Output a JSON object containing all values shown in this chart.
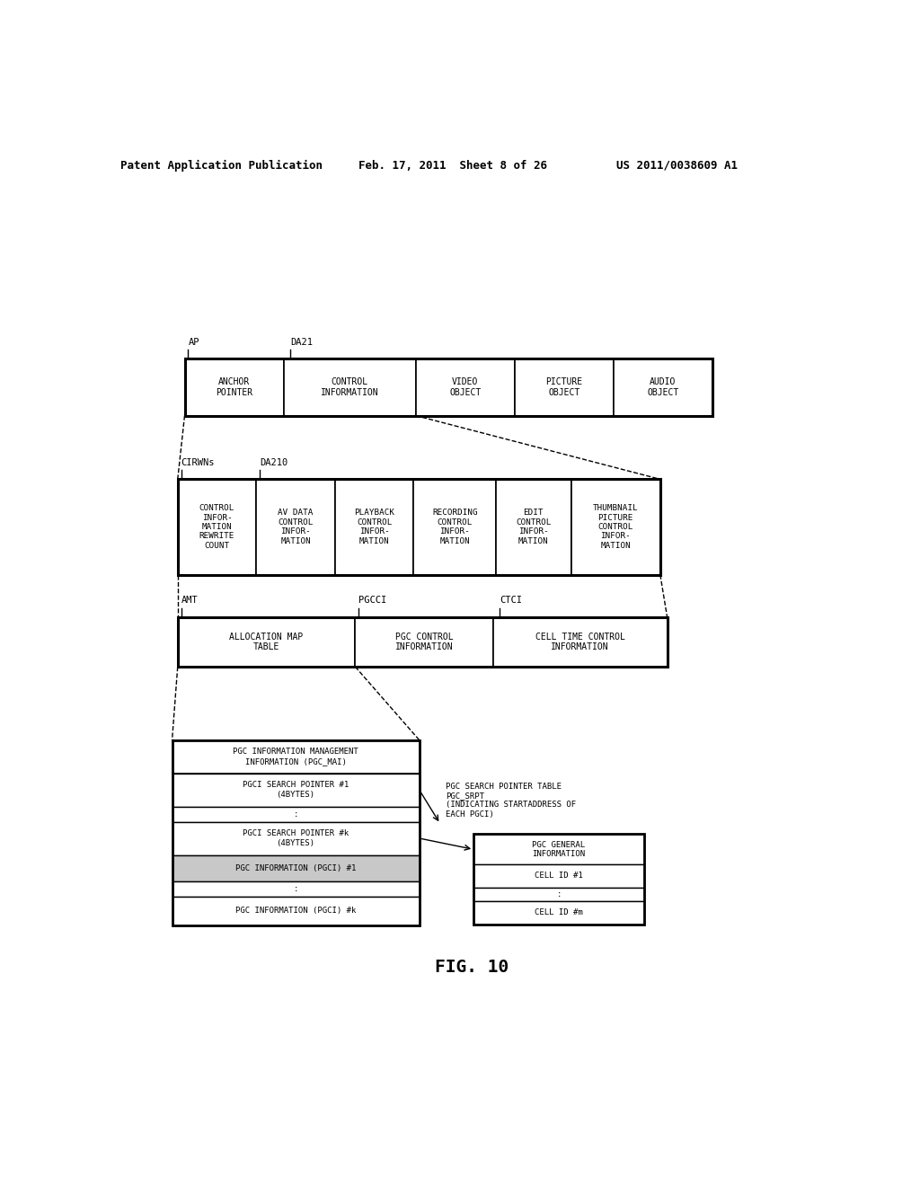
{
  "bg_color": "#ffffff",
  "text_color": "#000000",
  "header_text": {
    "left": "Patent Application Publication",
    "center": "Feb. 17, 2011  Sheet 8 of 26",
    "right": "US 2011/0038609 A1"
  },
  "figure_label": "FIG. 10"
}
